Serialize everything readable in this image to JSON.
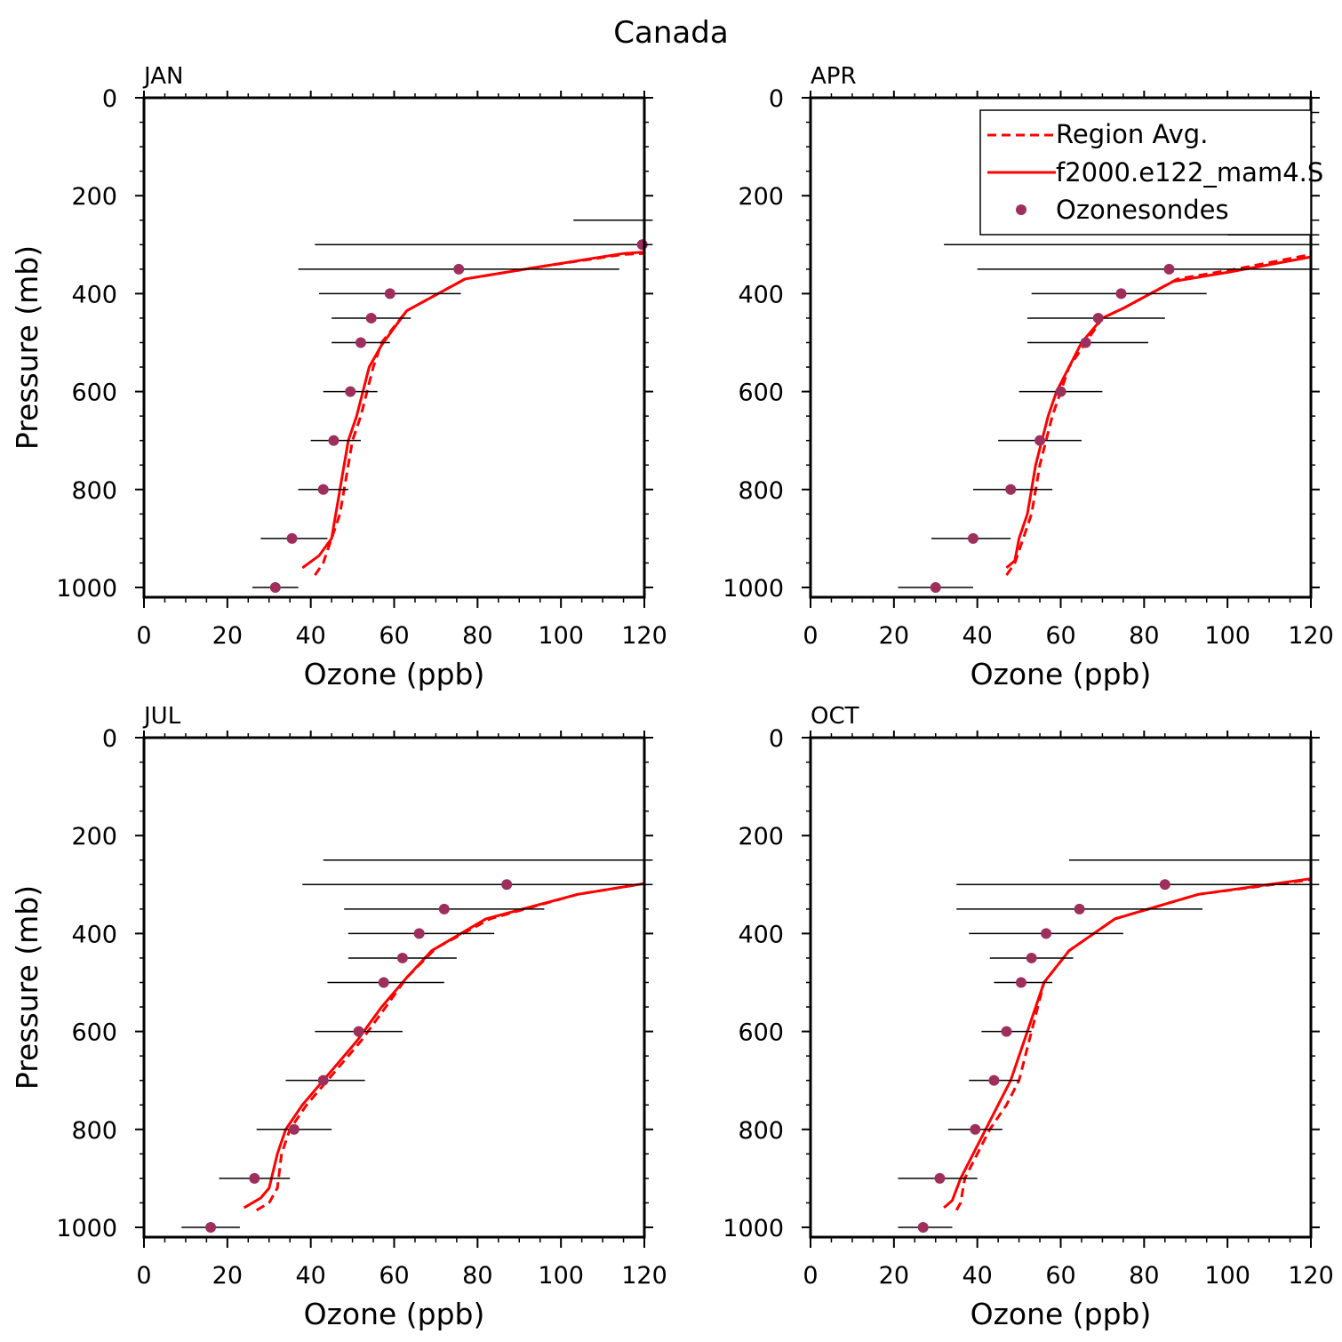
{
  "figure_title": "Canada",
  "colors": {
    "model": "#ff0000",
    "sonde": "#9e2f5c",
    "axis": "#000000"
  },
  "legend": {
    "region_avg": "Region Avg.",
    "model_run": "f2000.e122_mam4.S",
    "ozonesondes": "Ozonesondes"
  },
  "chart_data": [
    {
      "type": "line",
      "panel": "JAN",
      "xlabel": "Ozone (ppb)",
      "ylabel": "Pressure (mb)",
      "xlim": [
        0,
        120
      ],
      "ylim": [
        1000,
        0
      ],
      "x_ticks": [
        "0",
        "20",
        "40",
        "60",
        "80",
        "100",
        "120"
      ],
      "y_ticks": [
        "0",
        "200",
        "400",
        "600",
        "800",
        "1000"
      ],
      "series": [
        {
          "name": "Region Avg.",
          "style": "dashed",
          "points": [
            [
              41,
              975
            ],
            [
              43,
              950
            ],
            [
              45,
              900
            ],
            [
              47,
              850
            ],
            [
              48,
              800
            ],
            [
              50,
              700
            ],
            [
              52,
              650
            ],
            [
              55,
              550
            ],
            [
              57,
              500
            ],
            [
              63,
              435
            ],
            [
              77,
              370
            ],
            [
              95,
              345
            ],
            [
              115,
              320
            ],
            [
              120,
              318
            ]
          ]
        },
        {
          "name": "f2000.e122_mam4.S",
          "style": "solid",
          "points": [
            [
              38,
              960
            ],
            [
              42,
              935
            ],
            [
              45,
              900
            ],
            [
              46,
              850
            ],
            [
              47,
              800
            ],
            [
              49,
              700
            ],
            [
              51,
              650
            ],
            [
              54,
              550
            ],
            [
              57,
              505
            ],
            [
              63,
              435
            ],
            [
              77,
              370
            ],
            [
              95,
              345
            ],
            [
              115,
              318
            ],
            [
              120,
              315
            ]
          ]
        },
        {
          "name": "Ozonesondes",
          "style": "markers",
          "points": [
            [
              31.5,
              1000
            ],
            [
              35.5,
              900
            ],
            [
              43,
              800
            ],
            [
              45.5,
              700
            ],
            [
              49.5,
              600
            ],
            [
              52,
              500
            ],
            [
              54.5,
              450
            ],
            [
              59,
              400
            ],
            [
              75.5,
              350
            ],
            [
              119.5,
              300
            ]
          ],
          "error_low": [
            26,
            28,
            37,
            40,
            43,
            45,
            45,
            42,
            37,
            41
          ],
          "error_high": [
            37,
            44,
            49,
            52,
            56,
            59,
            64,
            76,
            114,
            122
          ]
        },
        {
          "name": "error-only",
          "style": "errorbar",
          "points": [
            [
              null,
              250
            ]
          ],
          "error_low": [
            103
          ],
          "error_high": [
            122
          ]
        }
      ]
    },
    {
      "type": "line",
      "panel": "APR",
      "xlabel": "Ozone (ppb)",
      "ylabel": "",
      "xlim": [
        0,
        120
      ],
      "ylim": [
        1000,
        0
      ],
      "x_ticks": [
        "0",
        "20",
        "40",
        "60",
        "80",
        "100",
        "120"
      ],
      "y_ticks": [
        "0",
        "200",
        "400",
        "600",
        "800",
        "1000"
      ],
      "series": [
        {
          "name": "Region Avg.",
          "style": "dashed",
          "points": [
            [
              47,
              975
            ],
            [
              49,
              950
            ],
            [
              51,
              900
            ],
            [
              53,
              850
            ],
            [
              55,
              750
            ],
            [
              58,
              650
            ],
            [
              60,
              600
            ],
            [
              62,
              550
            ],
            [
              66,
              500
            ],
            [
              70,
              450
            ],
            [
              75,
              430
            ],
            [
              88,
              370
            ],
            [
              102,
              350
            ],
            [
              120,
              320
            ]
          ]
        },
        {
          "name": "f2000.e122_mam4.S",
          "style": "solid",
          "points": [
            [
              47,
              960
            ],
            [
              49,
              945
            ],
            [
              50,
              900
            ],
            [
              52,
              850
            ],
            [
              54,
              750
            ],
            [
              57,
              650
            ],
            [
              59,
              600
            ],
            [
              62,
              550
            ],
            [
              65,
              500
            ],
            [
              70,
              450
            ],
            [
              75,
              430
            ],
            [
              87,
              375
            ],
            [
              101,
              355
            ],
            [
              120,
              325
            ]
          ]
        },
        {
          "name": "Ozonesondes",
          "style": "markers",
          "points": [
            [
              30,
              1000
            ],
            [
              39,
              900
            ],
            [
              48,
              800
            ],
            [
              55,
              700
            ],
            [
              60,
              600
            ],
            [
              66,
              500
            ],
            [
              69,
              450
            ],
            [
              74.5,
              400
            ],
            [
              86,
              350
            ]
          ],
          "error_low": [
            21,
            29,
            39,
            45,
            50,
            52,
            52,
            53,
            40
          ],
          "error_high": [
            39,
            48,
            58,
            65,
            70,
            81,
            85,
            95,
            122
          ]
        },
        {
          "name": "error-only",
          "style": "errorbar",
          "points": [
            [
              null,
              300
            ],
            [
              null,
              280
            ],
            [
              null,
              250
            ],
            [
              null,
              30
            ]
          ],
          "error_low": [
            32,
            100,
            80,
            120
          ],
          "error_high": [
            122,
            122,
            122,
            122
          ]
        }
      ]
    },
    {
      "type": "line",
      "panel": "JUL",
      "xlabel": "Ozone (ppb)",
      "ylabel": "Pressure (mb)",
      "xlim": [
        0,
        120
      ],
      "ylim": [
        1000,
        0
      ],
      "x_ticks": [
        "0",
        "20",
        "40",
        "60",
        "80",
        "100",
        "120"
      ],
      "y_ticks": [
        "0",
        "200",
        "400",
        "600",
        "800",
        "1000"
      ],
      "series": [
        {
          "name": "Region Avg.",
          "style": "dashed",
          "points": [
            [
              27,
              965
            ],
            [
              30,
              950
            ],
            [
              32,
              920
            ],
            [
              33,
              850
            ],
            [
              35,
              800
            ],
            [
              39,
              750
            ],
            [
              46,
              680
            ],
            [
              52,
              620
            ],
            [
              58,
              550
            ],
            [
              63,
              490
            ],
            [
              70,
              430
            ],
            [
              83,
              370
            ],
            [
              104,
              320
            ],
            [
              120,
              298
            ]
          ]
        },
        {
          "name": "f2000.e122_mam4.S",
          "style": "solid",
          "points": [
            [
              24,
              960
            ],
            [
              28,
              940
            ],
            [
              30,
              920
            ],
            [
              32,
              850
            ],
            [
              34,
              800
            ],
            [
              38,
              750
            ],
            [
              45,
              680
            ],
            [
              51,
              620
            ],
            [
              57,
              550
            ],
            [
              63,
              490
            ],
            [
              69,
              435
            ],
            [
              82,
              370
            ],
            [
              104,
              320
            ],
            [
              120,
              298
            ]
          ]
        },
        {
          "name": "Ozonesondes",
          "style": "markers",
          "points": [
            [
              16,
              1000
            ],
            [
              26.5,
              900
            ],
            [
              36,
              800
            ],
            [
              43,
              700
            ],
            [
              51.5,
              600
            ],
            [
              57.5,
              500
            ],
            [
              62,
              450
            ],
            [
              66,
              400
            ],
            [
              72,
              350
            ],
            [
              87,
              300
            ]
          ],
          "error_low": [
            9,
            18,
            27,
            34,
            41,
            44,
            49,
            49,
            48,
            38
          ],
          "error_high": [
            23,
            35,
            45,
            53,
            62,
            72,
            75,
            84,
            96,
            122
          ]
        },
        {
          "name": "error-only",
          "style": "errorbar",
          "points": [
            [
              null,
              250
            ]
          ],
          "error_low": [
            43
          ],
          "error_high": [
            122
          ]
        }
      ]
    },
    {
      "type": "line",
      "panel": "OCT",
      "xlabel": "Ozone (ppb)",
      "ylabel": "",
      "xlim": [
        0,
        120
      ],
      "ylim": [
        1000,
        0
      ],
      "x_ticks": [
        "0",
        "20",
        "40",
        "60",
        "80",
        "100",
        "120"
      ],
      "y_ticks": [
        "0",
        "200",
        "400",
        "600",
        "800",
        "1000"
      ],
      "series": [
        {
          "name": "Region Avg.",
          "style": "dashed",
          "points": [
            [
              35,
              965
            ],
            [
              36,
              950
            ],
            [
              37,
              900
            ],
            [
              40,
              850
            ],
            [
              43,
              800
            ],
            [
              47,
              750
            ],
            [
              50,
              700
            ],
            [
              53,
              600
            ],
            [
              56,
              500
            ],
            [
              62,
              435
            ],
            [
              73,
              370
            ],
            [
              93,
              320
            ],
            [
              120,
              290
            ]
          ]
        },
        {
          "name": "f2000.e122_mam4.S",
          "style": "solid",
          "points": [
            [
              32,
              960
            ],
            [
              34,
              945
            ],
            [
              36,
              900
            ],
            [
              39,
              850
            ],
            [
              42,
              800
            ],
            [
              45,
              750
            ],
            [
              48,
              700
            ],
            [
              52,
              600
            ],
            [
              56,
              500
            ],
            [
              62,
              435
            ],
            [
              73,
              370
            ],
            [
              93,
              320
            ],
            [
              120,
              288
            ]
          ]
        },
        {
          "name": "Ozonesondes",
          "style": "markers",
          "points": [
            [
              27,
              1000
            ],
            [
              31,
              900
            ],
            [
              39.5,
              800
            ],
            [
              44,
              700
            ],
            [
              47,
              600
            ],
            [
              50.5,
              500
            ],
            [
              53,
              450
            ],
            [
              56.5,
              400
            ],
            [
              64.5,
              350
            ],
            [
              85,
              300
            ]
          ],
          "error_low": [
            21,
            21,
            33,
            38,
            41,
            44,
            43,
            38,
            35,
            35
          ],
          "error_high": [
            34,
            40,
            46,
            50,
            53,
            58,
            63,
            75,
            94,
            122
          ]
        },
        {
          "name": "error-only",
          "style": "errorbar",
          "points": [
            [
              null,
              250
            ]
          ],
          "error_low": [
            62
          ],
          "error_high": [
            122
          ]
        }
      ]
    }
  ]
}
